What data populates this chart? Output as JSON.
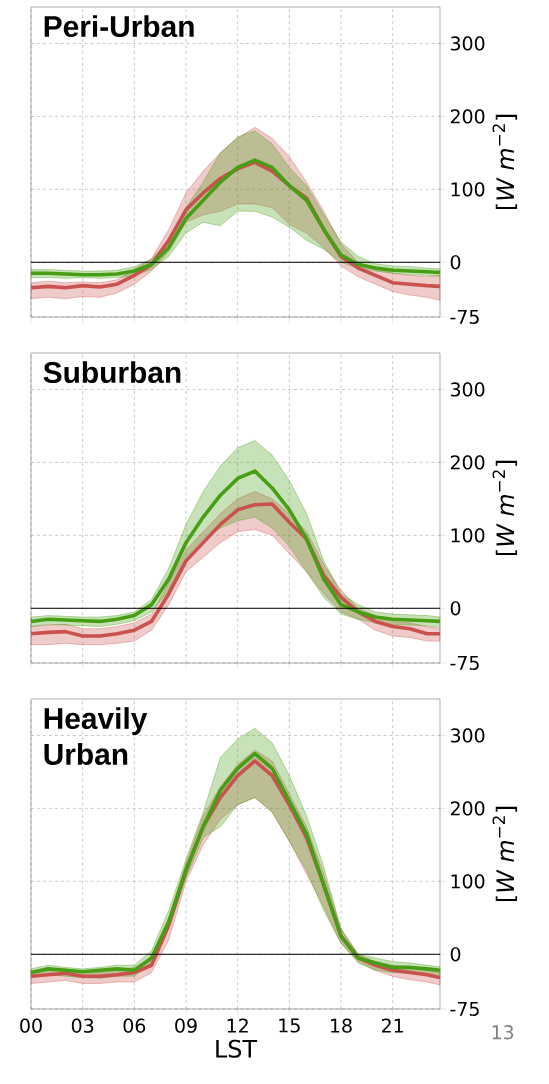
{
  "chart_data": [
    {
      "type": "line",
      "title": "Peri-Urban",
      "ylabel": "[*W  m*$^{−2}$]",
      "tick_labels": "y",
      "grid": true,
      "x": [
        0,
        1,
        2,
        3,
        4,
        5,
        6,
        7,
        8,
        9,
        10,
        11,
        12,
        13,
        14,
        15,
        16,
        17,
        18,
        19,
        20,
        21,
        22,
        23,
        23.75
      ],
      "xlim": [
        0,
        23.75
      ],
      "xticks": [
        {
          "value": 0,
          "label": null
        },
        {
          "value": 3,
          "label": null
        },
        {
          "value": 6,
          "label": null
        },
        {
          "value": 9,
          "label": null
        },
        {
          "value": 12,
          "label": null
        },
        {
          "value": 15,
          "label": null
        },
        {
          "value": 18,
          "label": null
        },
        {
          "value": 21,
          "label": null
        }
      ],
      "ylim": [
        -75,
        350
      ],
      "yticks": [
        -75,
        0,
        100,
        200,
        300
      ],
      "ref_lines": [
        {
          "axis": "y",
          "value": 0,
          "color": "#000000"
        }
      ],
      "series": [
        {
          "color": "#c9524e",
          "values": [
            -35,
            -33,
            -35,
            -32,
            -34,
            -30,
            -18,
            -3,
            30,
            72,
            95,
            115,
            128,
            137,
            125,
            105,
            88,
            45,
            8,
            -8,
            -18,
            -28,
            -30,
            -32,
            -33
          ],
          "lower": [
            -50,
            -48,
            -50,
            -47,
            -48,
            -42,
            -30,
            -12,
            15,
            55,
            65,
            70,
            80,
            80,
            75,
            52,
            40,
            20,
            -5,
            -20,
            -30,
            -40,
            -45,
            -48,
            -52
          ],
          "upper": [
            -28,
            -26,
            -28,
            -27,
            -28,
            -24,
            -10,
            5,
            45,
            95,
            125,
            150,
            170,
            185,
            170,
            145,
            110,
            70,
            25,
            0,
            -8,
            -15,
            -18,
            -20,
            -18
          ]
        },
        {
          "color": "#479e14",
          "values": [
            -15,
            -15,
            -16,
            -17,
            -17,
            -16,
            -12,
            -3,
            20,
            60,
            85,
            110,
            130,
            140,
            130,
            105,
            85,
            45,
            10,
            -3,
            -8,
            -11,
            -12,
            -13,
            -14
          ],
          "lower": [
            -21,
            -21,
            -22,
            -21,
            -22,
            -21,
            -18,
            -10,
            8,
            40,
            55,
            50,
            70,
            70,
            62,
            48,
            30,
            18,
            0,
            -8,
            -12,
            -15,
            -17,
            -18,
            -19
          ],
          "upper": [
            -10,
            -10,
            -11,
            -12,
            -12,
            -11,
            -6,
            4,
            30,
            75,
            110,
            150,
            172,
            180,
            162,
            130,
            105,
            65,
            28,
            8,
            -2,
            -5,
            -6,
            -8,
            -9
          ]
        }
      ]
    },
    {
      "type": "line",
      "title": "Suburban",
      "ylabel": "[*W  m*$^{−2}$]",
      "tick_labels": "y",
      "grid": true,
      "x": [
        0,
        1,
        2,
        3,
        4,
        5,
        6,
        7,
        8,
        9,
        10,
        11,
        12,
        13,
        14,
        15,
        16,
        17,
        18,
        19,
        20,
        21,
        22,
        23,
        23.75
      ],
      "xlim": [
        0,
        23.75
      ],
      "xticks": [
        {
          "value": 0,
          "label": null
        },
        {
          "value": 3,
          "label": null
        },
        {
          "value": 6,
          "label": null
        },
        {
          "value": 9,
          "label": null
        },
        {
          "value": 12,
          "label": null
        },
        {
          "value": 15,
          "label": null
        },
        {
          "value": 18,
          "label": null
        },
        {
          "value": 21,
          "label": null
        }
      ],
      "ylim": [
        -75,
        350
      ],
      "yticks": [
        -75,
        0,
        100,
        200,
        300
      ],
      "ref_lines": [
        {
          "axis": "y",
          "value": 0,
          "color": "#000000"
        }
      ],
      "series": [
        {
          "color": "#c9524e",
          "values": [
            -35,
            -33,
            -32,
            -38,
            -38,
            -35,
            -30,
            -18,
            20,
            65,
            90,
            115,
            135,
            142,
            143,
            118,
            95,
            45,
            15,
            -5,
            -18,
            -25,
            -28,
            -35,
            -35
          ],
          "lower": [
            -50,
            -50,
            -48,
            -50,
            -50,
            -48,
            -45,
            -30,
            5,
            50,
            70,
            90,
            105,
            108,
            100,
            75,
            50,
            20,
            -5,
            -15,
            -30,
            -38,
            -40,
            -45,
            -45
          ],
          "upper": [
            -25,
            -23,
            -22,
            -28,
            -28,
            -25,
            -20,
            -8,
            35,
            80,
            105,
            130,
            150,
            160,
            150,
            130,
            105,
            60,
            25,
            0,
            -10,
            -18,
            -20,
            -25,
            -28
          ]
        },
        {
          "color": "#479e14",
          "values": [
            -18,
            -15,
            -16,
            -17,
            -18,
            -15,
            -10,
            5,
            40,
            90,
            125,
            155,
            178,
            188,
            165,
            135,
            95,
            40,
            5,
            -5,
            -12,
            -15,
            -16,
            -17,
            -18
          ],
          "lower": [
            -25,
            -22,
            -23,
            -24,
            -25,
            -22,
            -17,
            -5,
            25,
            70,
            95,
            110,
            120,
            125,
            110,
            85,
            50,
            15,
            -8,
            -15,
            -20,
            -22,
            -23,
            -24,
            -26
          ],
          "upper": [
            -12,
            -10,
            -11,
            -12,
            -12,
            -10,
            -5,
            12,
            55,
            115,
            160,
            195,
            220,
            230,
            210,
            175,
            130,
            65,
            20,
            5,
            -5,
            -8,
            -9,
            -10,
            -12
          ]
        }
      ]
    },
    {
      "type": "line",
      "title": "Heavily Urban",
      "ylabel": "[*W  m*$^{−2}$]",
      "xlabel": "LST",
      "grid": true,
      "x": [
        0,
        1,
        2,
        3,
        4,
        5,
        6,
        7,
        8,
        9,
        10,
        11,
        12,
        13,
        14,
        15,
        16,
        17,
        18,
        19,
        20,
        21,
        22,
        23,
        23.75
      ],
      "xlim": [
        0,
        23.75
      ],
      "xticks": [
        {
          "value": 0,
          "label": "00"
        },
        {
          "value": 3,
          "label": "03"
        },
        {
          "value": 6,
          "label": "06"
        },
        {
          "value": 9,
          "label": "09"
        },
        {
          "value": 12,
          "label": "12"
        },
        {
          "value": 15,
          "label": "15"
        },
        {
          "value": 18,
          "label": "18"
        },
        {
          "value": 21,
          "label": "21"
        }
      ],
      "ylim": [
        -75,
        350
      ],
      "yticks": [
        -75,
        0,
        100,
        200,
        300
      ],
      "ref_lines": [
        {
          "axis": "y",
          "value": 0,
          "color": "#000000"
        }
      ],
      "annotations": [
        "13"
      ],
      "series": [
        {
          "color": "#c9524e",
          "values": [
            -30,
            -28,
            -26,
            -30,
            -30,
            -28,
            -25,
            -15,
            40,
            115,
            175,
            215,
            245,
            265,
            245,
            205,
            160,
            95,
            25,
            -5,
            -15,
            -22,
            -25,
            -28,
            -32
          ],
          "lower": [
            -40,
            -38,
            -36,
            -40,
            -40,
            -38,
            -38,
            -25,
            20,
            100,
            150,
            185,
            205,
            215,
            195,
            155,
            110,
            65,
            15,
            -10,
            -22,
            -30,
            -35,
            -38,
            -42
          ],
          "upper": [
            -25,
            -22,
            -20,
            -25,
            -25,
            -22,
            -18,
            -5,
            50,
            125,
            190,
            230,
            260,
            280,
            265,
            220,
            175,
            110,
            35,
            0,
            -10,
            -15,
            -18,
            -22,
            -25
          ]
        },
        {
          "color": "#479e14",
          "values": [
            -25,
            -20,
            -22,
            -24,
            -22,
            -20,
            -22,
            -5,
            45,
            115,
            175,
            225,
            255,
            275,
            255,
            210,
            165,
            95,
            25,
            -5,
            -12,
            -18,
            -18,
            -20,
            -22
          ],
          "lower": [
            -30,
            -28,
            -30,
            -32,
            -33,
            -30,
            -30,
            -12,
            35,
            105,
            160,
            175,
            205,
            215,
            195,
            155,
            115,
            60,
            15,
            -12,
            -22,
            -25,
            -26,
            -28,
            -30
          ],
          "upper": [
            -20,
            -15,
            -18,
            -20,
            -18,
            -15,
            -15,
            5,
            60,
            130,
            195,
            270,
            295,
            310,
            290,
            245,
            190,
            120,
            35,
            0,
            -5,
            -10,
            -12,
            -15,
            -17
          ]
        }
      ]
    }
  ]
}
